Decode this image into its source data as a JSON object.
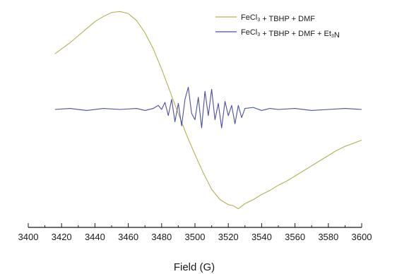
{
  "chart_data": {
    "type": "line",
    "xlabel": "Field (G)",
    "ylabel": "",
    "xlim": [
      3400,
      3600
    ],
    "ylim": [
      -1.0,
      1.0
    ],
    "y_axis_shown": false,
    "grid": false,
    "legend_position": "top-right",
    "x_major_ticks": [
      3400,
      3420,
      3440,
      3460,
      3480,
      3500,
      3520,
      3540,
      3560,
      3580,
      3600
    ],
    "x_minor_step": 10,
    "series": [
      {
        "name": "FeCl3 + TBHP + DMF",
        "color": "#b4b155",
        "x": [
          3416,
          3420,
          3425,
          3430,
          3435,
          3440,
          3445,
          3450,
          3455,
          3460,
          3465,
          3470,
          3475,
          3480,
          3485,
          3490,
          3495,
          3500,
          3505,
          3510,
          3515,
          3520,
          3523,
          3526,
          3530,
          3535,
          3540,
          3545,
          3550,
          3555,
          3560,
          3565,
          3570,
          3575,
          3580,
          3585,
          3590,
          3595,
          3600
        ],
        "y": [
          0.55,
          0.6,
          0.66,
          0.73,
          0.8,
          0.87,
          0.92,
          0.96,
          0.97,
          0.95,
          0.88,
          0.76,
          0.6,
          0.4,
          0.18,
          -0.04,
          -0.25,
          -0.44,
          -0.62,
          -0.78,
          -0.88,
          -0.93,
          -0.94,
          -0.97,
          -0.92,
          -0.88,
          -0.83,
          -0.79,
          -0.74,
          -0.7,
          -0.65,
          -0.6,
          -0.55,
          -0.5,
          -0.45,
          -0.4,
          -0.36,
          -0.33,
          -0.3
        ]
      },
      {
        "name": "FeCl3 + TBHP + DMF + Et3N",
        "color": "#4a4fa5",
        "x": [
          3416,
          3425,
          3435,
          3445,
          3455,
          3465,
          3470,
          3475,
          3478,
          3480,
          3482,
          3484,
          3486,
          3488,
          3490,
          3492,
          3494,
          3496,
          3498,
          3500,
          3502,
          3504,
          3506,
          3508,
          3510,
          3512,
          3514,
          3516,
          3518,
          3520,
          3522,
          3524,
          3526,
          3528,
          3530,
          3535,
          3540,
          3545,
          3550,
          3560,
          3570,
          3580,
          3590,
          3600
        ],
        "y": [
          0.0,
          0.01,
          -0.01,
          0.01,
          0.0,
          0.01,
          -0.01,
          0.01,
          0.04,
          0.0,
          0.07,
          -0.06,
          0.1,
          -0.12,
          0.06,
          -0.16,
          0.1,
          0.22,
          -0.04,
          -0.1,
          0.12,
          -0.18,
          0.18,
          -0.06,
          0.2,
          -0.1,
          0.06,
          -0.18,
          0.08,
          -0.06,
          0.04,
          -0.14,
          0.04,
          -0.08,
          0.01,
          0.02,
          -0.01,
          0.01,
          0.0,
          0.01,
          -0.01,
          0.0,
          0.01,
          0.0
        ]
      }
    ],
    "legend": {
      "entries": [
        {
          "series": 0,
          "parts": [
            [
              "FeCl",
              "n"
            ],
            [
              "3",
              "sub"
            ],
            [
              " + TBHP + DMF",
              "n"
            ]
          ]
        },
        {
          "series": 1,
          "parts": [
            [
              "FeCl",
              "n"
            ],
            [
              "3",
              "sub"
            ],
            [
              " + TBHP + DMF + Et",
              "n"
            ],
            [
              "3",
              "sub"
            ],
            [
              "N",
              "n"
            ]
          ]
        }
      ]
    }
  }
}
